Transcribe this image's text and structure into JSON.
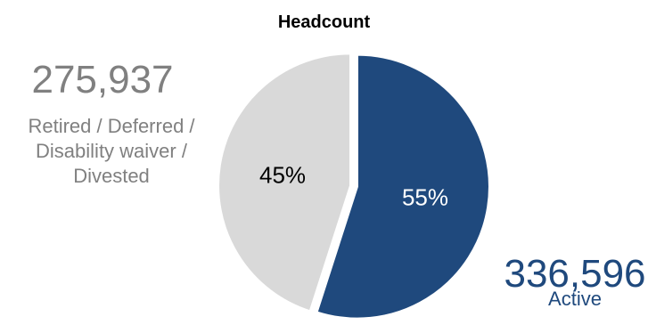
{
  "chart_data": {
    "type": "pie",
    "title": "Headcount",
    "slices": [
      {
        "label": "Active",
        "value": 336596,
        "percent_label": "55%",
        "color": "#1f497d",
        "label_color": "#ffffff"
      },
      {
        "label": "Retired / Deferred /\nDisability waiver /\nDivested",
        "value": 275937,
        "percent_label": "45%",
        "color": "#d9d9d9",
        "label_color": "#000000"
      }
    ],
    "legend": "none"
  },
  "callouts": {
    "left": {
      "count": "275,937",
      "label": "Retired / Deferred /\nDisability waiver /\nDivested",
      "color": "#808080"
    },
    "right": {
      "count": "336,596",
      "label": "Active",
      "color": "#1f497d"
    }
  }
}
